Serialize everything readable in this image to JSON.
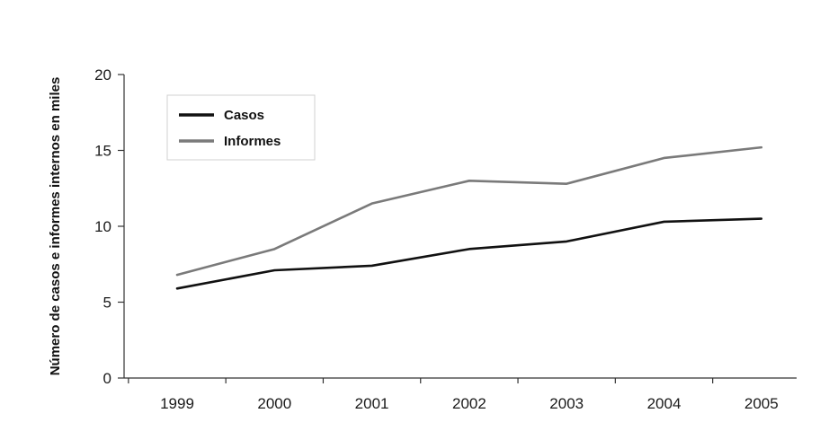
{
  "chart_data": {
    "type": "line",
    "categories": [
      "1999",
      "2000",
      "2001",
      "2002",
      "2003",
      "2004",
      "2005"
    ],
    "series": [
      {
        "name": "Casos",
        "values": [
          5.9,
          7.1,
          7.4,
          8.5,
          9.0,
          10.3,
          10.5
        ],
        "color": "#111111"
      },
      {
        "name": "Informes",
        "values": [
          6.8,
          8.5,
          11.5,
          13.0,
          12.8,
          14.5,
          15.2
        ],
        "color": "#7a7a7a"
      }
    ],
    "yticks": [
      "0",
      "5",
      "10",
      "15",
      "20"
    ],
    "ylim": [
      0,
      20
    ],
    "ylabel": "Número de casos e informes internos en miles",
    "xlabel": "",
    "title": "",
    "grid": false,
    "legend_position": "top-left"
  }
}
